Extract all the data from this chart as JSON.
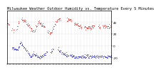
{
  "title": "Milwaukee Weather Outdoor Humidity vs. Temperature Every 5 Minutes",
  "red_color": "#dd0000",
  "blue_color": "#0000cc",
  "background_color": "#ffffff",
  "grid_color": "#bbbbbb",
  "ylim": [
    -30,
    60
  ],
  "yticks_right": [
    40,
    20,
    0,
    -20
  ],
  "ytick_labels": [
    "40",
    "20",
    "0",
    "-20"
  ],
  "title_fontsize": 3.8,
  "axis_fontsize": 3.0,
  "markersize": 1.0
}
